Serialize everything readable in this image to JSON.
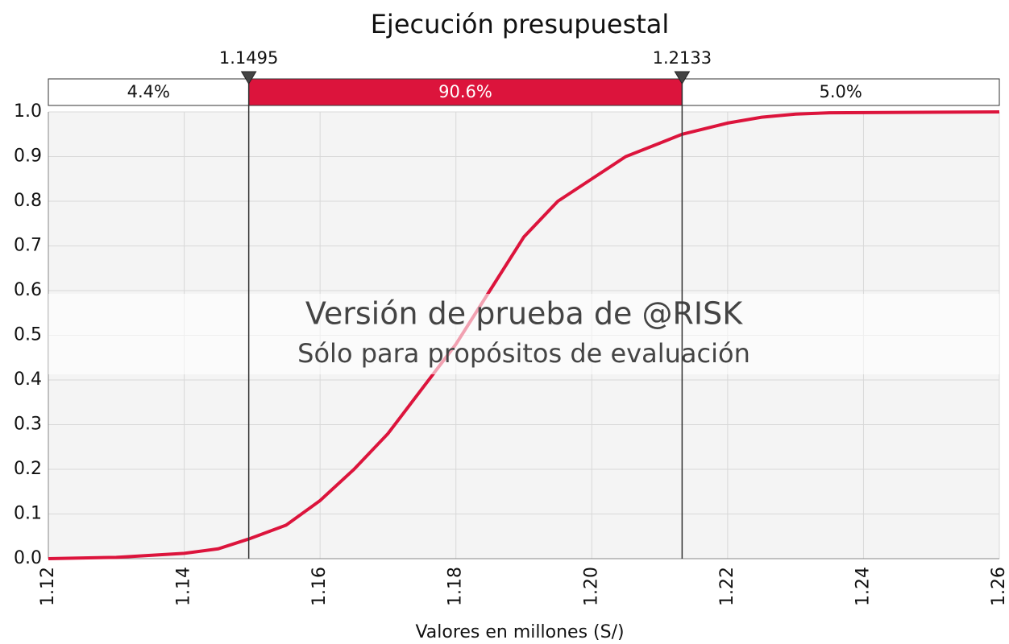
{
  "chart_data": {
    "type": "line",
    "title": "Ejecución presupuestal",
    "x_label": "Valores en millones (S/)",
    "x": [
      1.12,
      1.13,
      1.14,
      1.145,
      1.1495,
      1.155,
      1.16,
      1.165,
      1.17,
      1.175,
      1.18,
      1.185,
      1.19,
      1.195,
      1.2,
      1.205,
      1.21,
      1.2133,
      1.22,
      1.225,
      1.23,
      1.235,
      1.26
    ],
    "series": [
      {
        "color": "#dc143c",
        "values": [
          0,
          0.003,
          0.012,
          0.022,
          0.044,
          0.075,
          0.13,
          0.2,
          0.28,
          0.38,
          0.48,
          0.6,
          0.72,
          0.8,
          0.85,
          0.9,
          0.93,
          0.95,
          0.975,
          0.988,
          0.995,
          0.998,
          1.0
        ]
      }
    ],
    "xlim": [
      1.12,
      1.26
    ],
    "xticks": [
      1.12,
      1.14,
      1.16,
      1.18,
      {
        "value": 1.2,
        "label": "1.20"
      },
      1.22,
      1.24,
      1.26
    ],
    "ylim": [
      0,
      1
    ],
    "yticks": [
      {
        "value": 0,
        "label": "0.0"
      },
      0.1,
      0.2,
      0.3,
      0.4,
      0.5,
      0.6,
      0.7,
      0.8,
      0.9,
      {
        "value": 1,
        "label": "1.0"
      }
    ],
    "grid": true,
    "markers": [
      1.1495,
      1.2133
    ],
    "band": {
      "values": [
        4.4,
        90.6,
        5
      ],
      "value_labels": [
        "4.4%",
        "90.6%",
        "5.0%"
      ],
      "color": "#dc143c"
    },
    "watermark": [
      "Versión de prueba de @RISK",
      "Sólo para propósitos de evaluación"
    ]
  }
}
